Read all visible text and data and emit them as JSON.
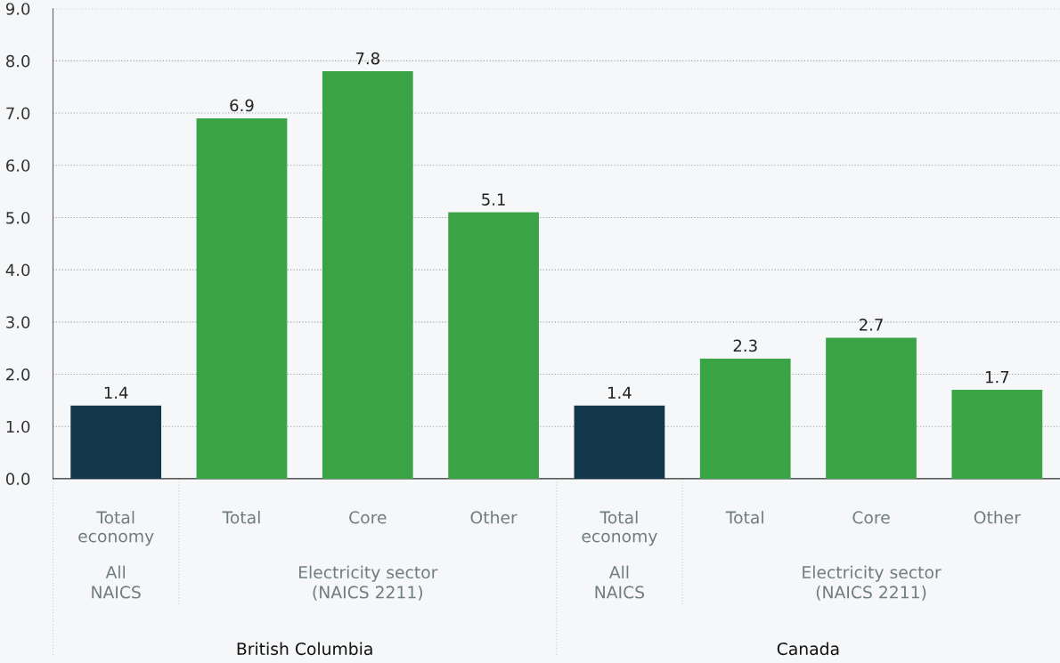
{
  "chart_data": {
    "type": "bar",
    "categories": [
      "Total\neconomy",
      "Total",
      "Core",
      "Other",
      "Total\neconomy",
      "Total",
      "Core",
      "Other"
    ],
    "values": [
      1.4,
      6.9,
      7.8,
      5.1,
      1.4,
      2.3,
      2.7,
      1.7
    ],
    "colors": [
      "#12374a",
      "#3aa346",
      "#3aa346",
      "#3aa346",
      "#12374a",
      "#3aa346",
      "#3aa346",
      "#3aa346"
    ],
    "ylim": [
      0,
      9
    ],
    "yticks": [
      {
        "value": 0,
        "label": "0.0"
      },
      {
        "value": 1,
        "label": "1.0"
      },
      {
        "value": 2,
        "label": "2.0"
      },
      {
        "value": 3,
        "label": "3.0"
      },
      {
        "value": 4,
        "label": "4.0"
      },
      {
        "value": 5,
        "label": "5.0"
      },
      {
        "value": 6,
        "label": "6.0"
      },
      {
        "value": 7,
        "label": "7.0"
      },
      {
        "value": 8,
        "label": "8.0"
      },
      {
        "value": 9,
        "label": "9.0"
      }
    ],
    "grid": "y",
    "data_labels": true,
    "annotations": [
      "All\nNAICS",
      "Electricity sector\n(NAICS 2211)",
      "All\nNAICS",
      "Electricity sector\n(NAICS 2211)",
      "British Columbia",
      "Canada"
    ]
  }
}
